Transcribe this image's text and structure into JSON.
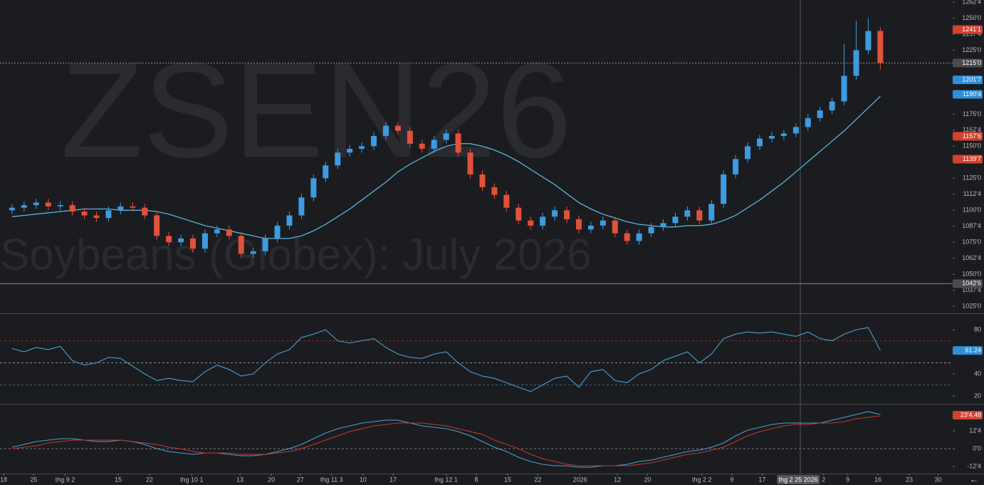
{
  "chart_data": [
    {
      "type": "candlestick",
      "watermark": "ZSEN26",
      "subtitle": "Soybeans (Globex): July 2026",
      "up_color": "#3d9be0",
      "down_color": "#e0523a",
      "open": [
        1100,
        1102,
        1104,
        1106,
        1103,
        1104,
        1099,
        1096,
        1094,
        1100,
        1103,
        1102,
        1096,
        1080,
        1075,
        1078,
        1070,
        1082,
        1085,
        1080,
        1066,
        1068,
        1078,
        1088,
        1096,
        1110,
        1125,
        1135,
        1145,
        1148,
        1150,
        1158,
        1166,
        1162,
        1152,
        1148,
        1155,
        1160,
        1145,
        1128,
        1118,
        1112,
        1102,
        1092,
        1088,
        1095,
        1100,
        1093,
        1085,
        1088,
        1092,
        1082,
        1076,
        1082,
        1087,
        1090,
        1095,
        1100,
        1092,
        1105,
        1128,
        1140,
        1150,
        1156,
        1158,
        1160,
        1165,
        1172,
        1178,
        1185,
        1205,
        1225,
        1240
      ],
      "high": [
        1105,
        1107,
        1109,
        1109,
        1107,
        1107,
        1102,
        1099,
        1103,
        1106,
        1106,
        1105,
        1099,
        1083,
        1081,
        1081,
        1085,
        1088,
        1088,
        1083,
        1071,
        1081,
        1091,
        1099,
        1113,
        1128,
        1138,
        1148,
        1151,
        1153,
        1161,
        1169,
        1169,
        1165,
        1155,
        1158,
        1163,
        1163,
        1148,
        1131,
        1121,
        1115,
        1105,
        1095,
        1098,
        1103,
        1103,
        1096,
        1091,
        1095,
        1095,
        1085,
        1085,
        1090,
        1093,
        1098,
        1103,
        1103,
        1108,
        1131,
        1143,
        1153,
        1159,
        1161,
        1163,
        1168,
        1175,
        1181,
        1188,
        1230,
        1248,
        1250,
        1243
      ],
      "low": [
        1097,
        1099,
        1101,
        1100,
        1100,
        1096,
        1093,
        1091,
        1091,
        1097,
        1099,
        1093,
        1077,
        1072,
        1072,
        1067,
        1067,
        1079,
        1077,
        1063,
        1063,
        1065,
        1075,
        1085,
        1093,
        1107,
        1122,
        1132,
        1142,
        1145,
        1147,
        1155,
        1159,
        1149,
        1145,
        1145,
        1152,
        1142,
        1125,
        1115,
        1109,
        1099,
        1089,
        1085,
        1085,
        1092,
        1090,
        1082,
        1082,
        1085,
        1079,
        1073,
        1073,
        1079,
        1084,
        1087,
        1092,
        1089,
        1089,
        1102,
        1125,
        1137,
        1147,
        1153,
        1155,
        1157,
        1162,
        1169,
        1175,
        1182,
        1202,
        1222,
        1210
      ],
      "close": [
        1102,
        1104,
        1106,
        1103,
        1104,
        1099,
        1096,
        1094,
        1100,
        1103,
        1102,
        1096,
        1080,
        1075,
        1078,
        1070,
        1082,
        1085,
        1080,
        1066,
        1068,
        1078,
        1088,
        1096,
        1110,
        1125,
        1135,
        1145,
        1148,
        1150,
        1158,
        1166,
        1162,
        1152,
        1148,
        1155,
        1160,
        1145,
        1128,
        1118,
        1112,
        1102,
        1092,
        1088,
        1095,
        1100,
        1093,
        1085,
        1088,
        1092,
        1082,
        1076,
        1082,
        1087,
        1090,
        1095,
        1100,
        1092,
        1105,
        1128,
        1140,
        1150,
        1156,
        1158,
        1160,
        1165,
        1172,
        1178,
        1185,
        1205,
        1225,
        1240,
        1215
      ],
      "overlays": [
        {
          "color": "#5fc0ea",
          "values": [
            1095,
            1096,
            1097,
            1098,
            1099,
            1100,
            1101,
            1101,
            1101,
            1100,
            1100,
            1100,
            1099,
            1097,
            1094,
            1091,
            1088,
            1086,
            1084,
            1082,
            1080,
            1078,
            1078,
            1078,
            1080,
            1084,
            1089,
            1095,
            1101,
            1108,
            1115,
            1122,
            1130,
            1136,
            1141,
            1146,
            1150,
            1152,
            1152,
            1150,
            1147,
            1143,
            1138,
            1132,
            1126,
            1120,
            1113,
            1106,
            1101,
            1097,
            1094,
            1091,
            1089,
            1088,
            1087,
            1087,
            1088,
            1088,
            1089,
            1092,
            1096,
            1102,
            1108,
            1115,
            1122,
            1130,
            1138,
            1146,
            1154,
            1162,
            1171,
            1180,
            1189
          ]
        }
      ],
      "xlim": [
        -1,
        78
      ],
      "ylim": [
        1019.5,
        1264.2
      ],
      "yticks": [
        {
          "value": 1262.5,
          "label": "1262'4"
        },
        {
          "value": 1250,
          "label": "1250'0"
        },
        {
          "value": 1237.5,
          "label": "1237'4"
        },
        {
          "value": 1225,
          "label": "1225'0"
        },
        {
          "value": 1175,
          "label": "1175'0"
        },
        {
          "value": 1162.5,
          "label": "1162'4"
        },
        {
          "value": 1150,
          "label": "1150'0"
        },
        {
          "value": 1125,
          "label": "1125'0"
        },
        {
          "value": 1112.5,
          "label": "1112'4"
        },
        {
          "value": 1100,
          "label": "1100'0"
        },
        {
          "value": 1087.5,
          "label": "1087'4"
        },
        {
          "value": 1075,
          "label": "1075'0"
        },
        {
          "value": 1062.5,
          "label": "1062'4"
        },
        {
          "value": 1050,
          "label": "1050'0"
        },
        {
          "value": 1037.5,
          "label": "1037'4"
        },
        {
          "value": 1025,
          "label": "1025'0"
        }
      ],
      "tags": [
        {
          "value": 1241.125,
          "label": "1241'1",
          "color": "#d5412e"
        },
        {
          "value": 1215,
          "label": "1215'0",
          "color": "#4a4b50",
          "line": "dotted"
        },
        {
          "value": 1201.875,
          "label": "1201'7",
          "color": "#2f8fd8"
        },
        {
          "value": 1190.5,
          "label": "1190'4",
          "color": "#2f8fd8"
        },
        {
          "value": 1157.75,
          "label": "1157'6",
          "color": "#d5412e"
        },
        {
          "value": 1139.875,
          "label": "1139'7",
          "color": "#d5412e"
        },
        {
          "value": 1042.75,
          "label": "1042'6",
          "color": "#4a4b50",
          "line": "solid"
        }
      ]
    },
    {
      "type": "line",
      "series": [
        {
          "color": "#4a9fd0",
          "values": [
            63,
            60,
            64,
            62,
            65,
            52,
            48,
            50,
            55,
            54,
            47,
            40,
            34,
            36,
            34,
            33,
            42,
            48,
            44,
            38,
            40,
            50,
            58,
            62,
            73,
            76,
            80,
            70,
            68,
            70,
            72,
            64,
            58,
            55,
            54,
            58,
            60,
            50,
            42,
            38,
            36,
            32,
            28,
            24,
            30,
            36,
            38,
            28,
            42,
            44,
            34,
            32,
            40,
            44,
            52,
            56,
            60,
            50,
            58,
            72,
            76,
            78,
            77,
            78,
            76,
            74,
            78,
            72,
            70,
            76,
            80,
            82,
            61.24
          ]
        }
      ],
      "levels": [
        {
          "value": 70,
          "color": "#b0382c"
        },
        {
          "value": 50,
          "color": "#bbbbbb"
        },
        {
          "value": 30,
          "color": "#3a7fb0"
        }
      ],
      "xlim": [
        -1,
        78
      ],
      "ylim": [
        12.9,
        94.2
      ],
      "yticks": [
        20,
        40,
        60,
        80
      ],
      "tags": [
        {
          "value": 61.24,
          "label": "61.24",
          "color": "#2f8fd8"
        }
      ]
    },
    {
      "type": "line",
      "series": [
        {
          "color": "#4a9fd0",
          "values": [
            1,
            3,
            5,
            6,
            7,
            7,
            6,
            5,
            5,
            6,
            5,
            3,
            0,
            -2,
            -3,
            -4,
            -3,
            -3,
            -4,
            -5,
            -5,
            -4,
            -2,
            0,
            3,
            7,
            11,
            14,
            16,
            18,
            19,
            20,
            20,
            18,
            16,
            15,
            14,
            12,
            9,
            5,
            1,
            -2,
            -6,
            -9,
            -11,
            -12,
            -12,
            -13,
            -13,
            -12,
            -12,
            -11,
            -9,
            -8,
            -6,
            -4,
            -2,
            -1,
            1,
            4,
            9,
            13,
            15,
            17,
            18,
            18,
            18,
            18,
            20,
            22,
            24,
            26,
            24
          ]
        },
        {
          "color": "#c0392b",
          "values": [
            0,
            1,
            2,
            4,
            5,
            6,
            6,
            6,
            6,
            6,
            5,
            4,
            3,
            1,
            0,
            -2,
            -3,
            -3,
            -3,
            -4,
            -4,
            -4,
            -3,
            -2,
            0,
            3,
            6,
            9,
            12,
            14,
            16,
            17,
            18,
            18,
            18,
            17,
            16,
            14,
            12,
            10,
            6,
            3,
            0,
            -4,
            -7,
            -9,
            -11,
            -12,
            -12,
            -12,
            -12,
            -12,
            -11,
            -10,
            -8,
            -6,
            -4,
            -3,
            -1,
            1,
            5,
            9,
            12,
            14,
            16,
            17,
            17,
            18,
            18,
            19,
            21,
            22,
            23
          ]
        }
      ],
      "levels": [
        {
          "value": 0,
          "color": "#999999"
        }
      ],
      "xlim": [
        -1,
        78
      ],
      "ylim": [
        -17.5,
        31
      ],
      "yticks": [
        {
          "value": 12.5,
          "label": "12'4"
        },
        {
          "value": 0,
          "label": "0'0"
        },
        {
          "value": -12.5,
          "label": "-12'4"
        }
      ],
      "tags": [
        {
          "value": 23.5,
          "label": "23'4,48",
          "color": "#d5412e"
        }
      ],
      "xticks": [
        {
          "value": -0.7,
          "label": "18"
        },
        {
          "value": 1.8,
          "label": "25"
        },
        {
          "value": 4.4,
          "label": "thg 9 2"
        },
        {
          "value": 8.8,
          "label": "15"
        },
        {
          "value": 11.4,
          "label": "22"
        },
        {
          "value": 14.9,
          "label": "thg 10 1"
        },
        {
          "value": 18.9,
          "label": "13"
        },
        {
          "value": 21.5,
          "label": "20"
        },
        {
          "value": 23.9,
          "label": "27"
        },
        {
          "value": 26.5,
          "label": "thg 11 3"
        },
        {
          "value": 29.1,
          "label": "10"
        },
        {
          "value": 31.6,
          "label": "17"
        },
        {
          "value": 36,
          "label": "thg 12 1"
        },
        {
          "value": 38.5,
          "label": "8"
        },
        {
          "value": 41.1,
          "label": "15"
        },
        {
          "value": 43.6,
          "label": "22"
        },
        {
          "value": 47.1,
          "label": "2026"
        },
        {
          "value": 50.2,
          "label": "12"
        },
        {
          "value": 52.7,
          "label": "20"
        },
        {
          "value": 57.2,
          "label": "thg 2 2"
        },
        {
          "value": 59.7,
          "label": "9"
        },
        {
          "value": 62.2,
          "label": "17"
        },
        {
          "value": 67.3,
          "label": "2"
        },
        {
          "value": 69.3,
          "label": "9"
        },
        {
          "value": 71.8,
          "label": "16"
        },
        {
          "value": 74.4,
          "label": "23"
        },
        {
          "value": 76.8,
          "label": "30"
        }
      ],
      "crosshair": {
        "value": 65.2,
        "label": "thg 2 25 2026"
      }
    }
  ]
}
